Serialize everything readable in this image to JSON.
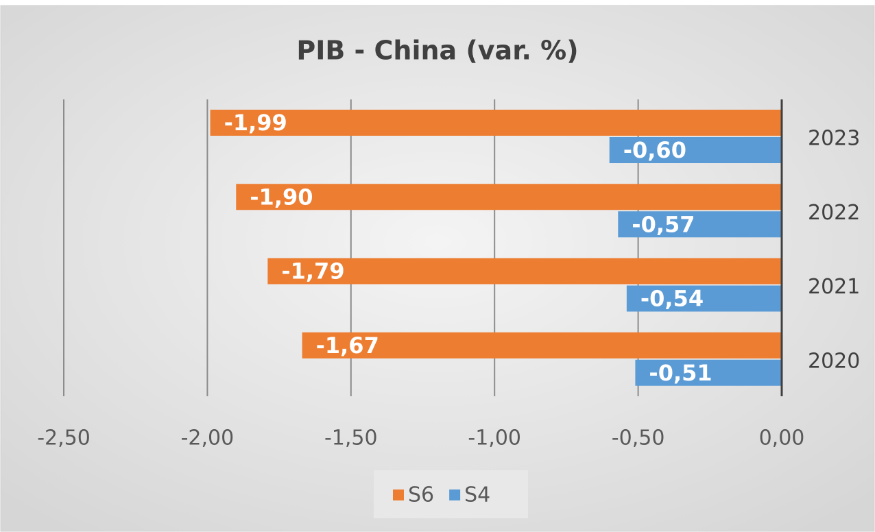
{
  "chart_data": {
    "type": "hbar",
    "title": "PIB - China (var. %)",
    "categories": [
      "2023",
      "2022",
      "2021",
      "2020"
    ],
    "series": [
      {
        "name": "S6",
        "color": "#ed7d31",
        "values": [
          -1.99,
          -1.9,
          -1.79,
          -1.67
        ],
        "value_labels": [
          "-1,99",
          "-1,90",
          "-1,79",
          "-1,67"
        ]
      },
      {
        "name": "S4",
        "color": "#5b9bd5",
        "values": [
          -0.6,
          -0.57,
          -0.54,
          -0.51
        ],
        "value_labels": [
          "-0,60",
          "-0,57",
          "-0,54",
          "-0,51"
        ]
      }
    ],
    "xlim": [
      -2.5,
      0
    ],
    "xticks": [
      {
        "value": -2.5,
        "label": "-2,50"
      },
      {
        "value": -2.0,
        "label": "-2,00"
      },
      {
        "value": -1.5,
        "label": "-1,50"
      },
      {
        "value": -1.0,
        "label": "-1,00"
      },
      {
        "value": -0.5,
        "label": "-0,50"
      },
      {
        "value": 0,
        "label": "0,00"
      }
    ],
    "grid": true,
    "legend": "bottom"
  }
}
